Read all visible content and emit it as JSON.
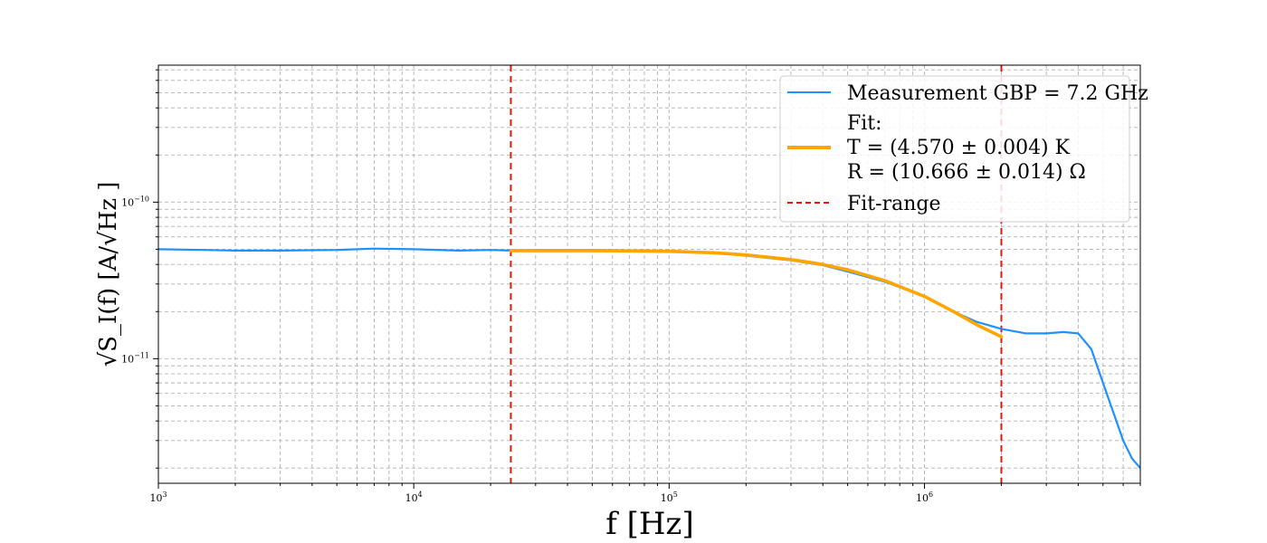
{
  "chart_data": {
    "type": "line",
    "title": "",
    "xlabel": "f  [Hz]",
    "ylabel": "√S_I(f) [A/√Hz ]",
    "xscale": "log",
    "yscale": "log",
    "xlim": [
      1000,
      7000000
    ],
    "ylim": [
      1.6e-12,
      7.5e-10
    ],
    "grid": true,
    "legend_position": "top-right",
    "x_ticks": [
      {
        "value": 1000,
        "base": "10",
        "exp": "3"
      },
      {
        "value": 10000,
        "base": "10",
        "exp": "4"
      },
      {
        "value": 100000,
        "base": "10",
        "exp": "5"
      },
      {
        "value": 1000000,
        "base": "10",
        "exp": "6"
      }
    ],
    "y_ticks": [
      {
        "value": 1e-10,
        "base": "10",
        "exp": "−10"
      },
      {
        "value": 1e-11,
        "base": "10",
        "exp": "−11"
      }
    ],
    "series": [
      {
        "name": "Measurement GBP = 7.2 GHz",
        "color": "#1e90ff",
        "style": "solid",
        "x": [
          1000,
          1500,
          2000,
          3000,
          5000,
          7000,
          10000,
          15000,
          20000,
          24000,
          30000,
          50000,
          80000,
          100000,
          150000,
          200000,
          300000,
          400000,
          500000,
          700000,
          1000000,
          1300000,
          1600000,
          2000000,
          2500000,
          3000000,
          3500000,
          4000000,
          4500000,
          5000000,
          5500000,
          6000000,
          6500000,
          7000000
        ],
        "y": [
          5e-11,
          4.95e-11,
          4.9e-11,
          4.9e-11,
          4.95e-11,
          5.05e-11,
          5e-11,
          4.9e-11,
          4.95e-11,
          4.9e-11,
          4.95e-11,
          4.95e-11,
          4.9e-11,
          4.85e-11,
          4.75e-11,
          4.55e-11,
          4.25e-11,
          3.95e-11,
          3.6e-11,
          3.1e-11,
          2.5e-11,
          2e-11,
          1.72e-11,
          1.55e-11,
          1.45e-11,
          1.45e-11,
          1.48e-11,
          1.45e-11,
          1.15e-11,
          7e-12,
          4.5e-12,
          3e-12,
          2.3e-12,
          2e-12
        ]
      },
      {
        "name": "Fit:",
        "fit_lines": [
          "T = (4.570 ± 0.004) K",
          "R = (10.666 ± 0.014) Ω"
        ],
        "color": "#ffa500",
        "style": "solid",
        "x": [
          24000,
          50000,
          100000,
          150000,
          200000,
          300000,
          400000,
          500000,
          700000,
          1000000,
          1300000,
          1600000,
          2000000
        ],
        "y": [
          4.9e-11,
          4.9e-11,
          4.85e-11,
          4.75e-11,
          4.6e-11,
          4.3e-11,
          4e-11,
          3.7e-11,
          3.15e-11,
          2.5e-11,
          2e-11,
          1.65e-11,
          1.38e-11
        ]
      },
      {
        "name": "Fit-range",
        "color": "#e8150c",
        "style": "dashed",
        "vlines": [
          24000,
          2000000
        ]
      }
    ]
  }
}
